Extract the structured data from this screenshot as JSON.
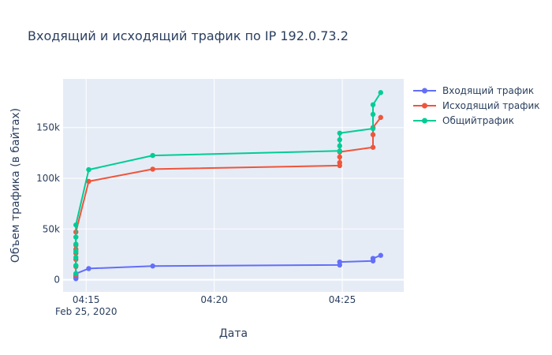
{
  "chart_data": {
    "type": "line",
    "title": "Входящий и исходящий трафик по IP 192.0.73.2",
    "xlabel": "Дата",
    "ylabel": "Объем трафика (в байтах)",
    "x_ticks": [
      {
        "label": "04:15",
        "sublabel": "Feb 25, 2020",
        "value": 0
      },
      {
        "label": "04:20",
        "sublabel": "",
        "value": 5
      },
      {
        "label": "04:25",
        "sublabel": "",
        "value": 10
      }
    ],
    "y_ticks": [
      {
        "label": "0",
        "value": 0
      },
      {
        "label": "50k",
        "value": 50000
      },
      {
        "label": "100k",
        "value": 100000
      },
      {
        "label": "150k",
        "value": 150000
      }
    ],
    "xlim": [
      -0.9,
      12.4
    ],
    "ylim": [
      -12000,
      198000
    ],
    "grid": true,
    "legend_position": "top-right",
    "series": [
      {
        "name": "Входящий трафик",
        "color": "#636efa",
        "points": [
          [
            -0.4,
            1000
          ],
          [
            -0.4,
            2000
          ],
          [
            -0.4,
            3000
          ],
          [
            -0.4,
            4000
          ],
          [
            -0.4,
            5000
          ],
          [
            -0.4,
            6000
          ],
          [
            0.1,
            11000
          ],
          [
            2.6,
            13500
          ],
          [
            9.9,
            14500
          ],
          [
            9.9,
            17500
          ],
          [
            11.2,
            18500
          ],
          [
            11.2,
            21000
          ],
          [
            11.5,
            24000
          ]
        ]
      },
      {
        "name": "Исходящий трафик",
        "color": "#ef553b",
        "points": [
          [
            -0.4,
            5000
          ],
          [
            -0.4,
            13000
          ],
          [
            -0.4,
            20000
          ],
          [
            -0.4,
            26000
          ],
          [
            -0.4,
            30000
          ],
          [
            -0.4,
            34000
          ],
          [
            -0.4,
            47000
          ],
          [
            0.1,
            97000
          ],
          [
            2.6,
            109000
          ],
          [
            9.9,
            112500
          ],
          [
            9.9,
            115500
          ],
          [
            9.9,
            121000
          ],
          [
            9.9,
            126000
          ],
          [
            11.2,
            130500
          ],
          [
            11.2,
            143000
          ],
          [
            11.2,
            150000
          ],
          [
            11.5,
            160000
          ]
        ]
      },
      {
        "name": "Общийтрафик",
        "color": "#00cc96",
        "points": [
          [
            -0.4,
            6000
          ],
          [
            -0.4,
            14000
          ],
          [
            -0.4,
            22000
          ],
          [
            -0.4,
            28000
          ],
          [
            -0.4,
            35000
          ],
          [
            -0.4,
            42000
          ],
          [
            -0.4,
            54000
          ],
          [
            0.1,
            108500
          ],
          [
            2.6,
            122500
          ],
          [
            9.9,
            127000
          ],
          [
            9.9,
            132000
          ],
          [
            9.9,
            138000
          ],
          [
            9.9,
            144500
          ],
          [
            11.2,
            149000
          ],
          [
            11.2,
            163000
          ],
          [
            11.2,
            172500
          ],
          [
            11.5,
            184500
          ]
        ]
      }
    ]
  }
}
